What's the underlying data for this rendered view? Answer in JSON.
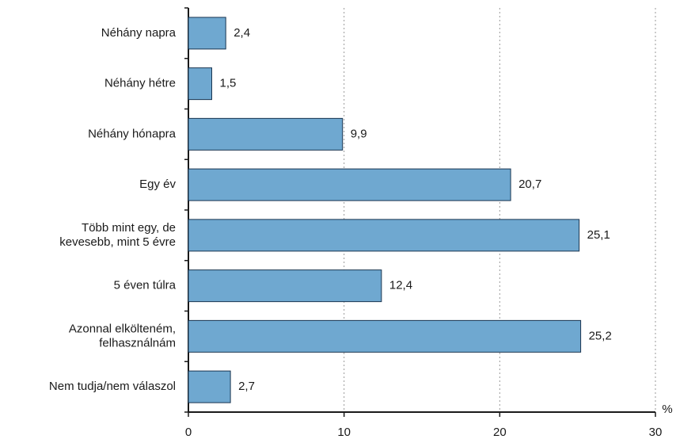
{
  "chart_data": {
    "type": "bar",
    "orientation": "horizontal",
    "categories": [
      "Néhány napra",
      "Néhány hétre",
      "Néhány hónapra",
      "Egy év",
      "Több mint egy, de\nkevesebb, mint 5 évre",
      "5 éven túlra",
      "Azonnal elkölteném,\nfelhasználnám",
      "Nem tudja/nem válaszol"
    ],
    "values": [
      2.4,
      1.5,
      9.9,
      20.7,
      25.1,
      12.4,
      25.2,
      2.7
    ],
    "value_labels": [
      "2,4",
      "1,5",
      "9,9",
      "20,7",
      "25,1",
      "12,4",
      "25,2",
      "2,7"
    ],
    "color": "#6fa8d0",
    "xlabel": "%",
    "xlim": [
      0,
      30
    ],
    "xticks": [
      0,
      10,
      20,
      30
    ],
    "grid": true
  }
}
